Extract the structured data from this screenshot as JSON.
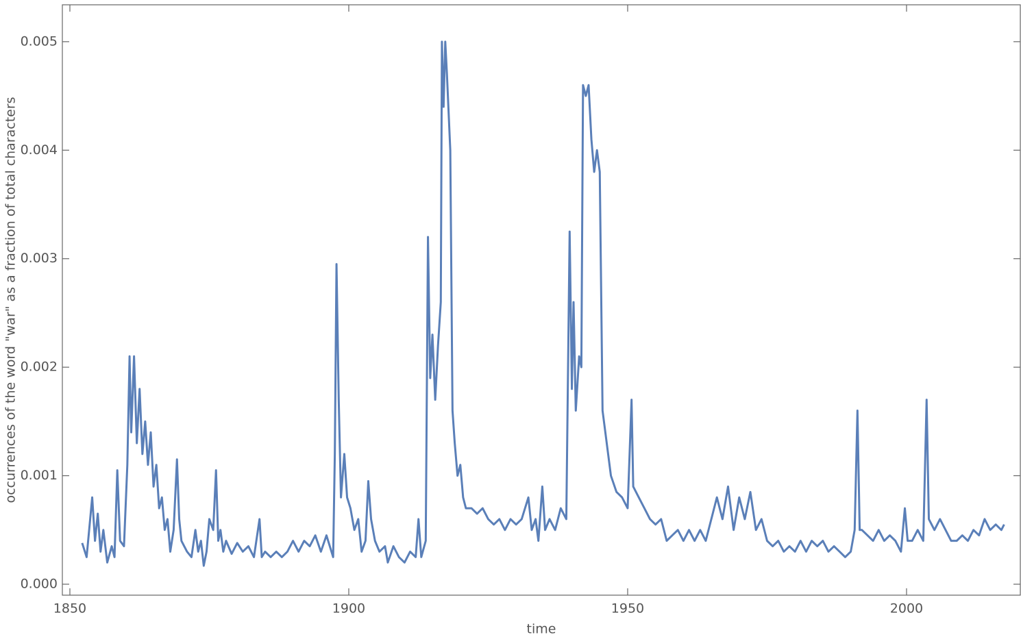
{
  "chart_data": {
    "type": "line",
    "x_label": "time",
    "y_label": "occurrences of the word \"war\" as a fraction of total characters",
    "xlim": [
      1848.65,
      2020.4
    ],
    "ylim": [
      -0.000101,
      0.00534
    ],
    "xticks": [
      1850,
      1900,
      1950,
      2000
    ],
    "yticks": [
      {
        "value": 0,
        "label": "0.000"
      },
      0.001,
      0.002,
      0.003,
      0.004,
      0.005
    ],
    "x": [
      1852.2,
      1853,
      1854,
      1854.5,
      1855,
      1855.5,
      1856,
      1856.7,
      1857.5,
      1858,
      1858.5,
      1859,
      1859.7,
      1860.3,
      1860.7,
      1861,
      1861.5,
      1862,
      1862.5,
      1863,
      1863.5,
      1864,
      1864.5,
      1865,
      1865.5,
      1866,
      1866.5,
      1867,
      1867.5,
      1868,
      1868.6,
      1869.2,
      1869.6,
      1870,
      1871,
      1871.8,
      1872.5,
      1873,
      1873.5,
      1874,
      1874.5,
      1875,
      1875.7,
      1876.2,
      1876.6,
      1877,
      1877.5,
      1878,
      1879,
      1880,
      1881,
      1882,
      1883,
      1884,
      1884.4,
      1885,
      1886,
      1887,
      1888,
      1889,
      1890,
      1891,
      1892,
      1893,
      1894,
      1895,
      1896,
      1897.2,
      1897.5,
      1897.8,
      1898.2,
      1898.6,
      1899.2,
      1899.7,
      1900.3,
      1901,
      1901.7,
      1902.3,
      1903,
      1903.5,
      1904,
      1904.7,
      1905.5,
      1906.5,
      1907,
      1908,
      1909,
      1910,
      1911,
      1912,
      1912.5,
      1913,
      1913.8,
      1914.2,
      1914.6,
      1915,
      1915.5,
      1916,
      1916.5,
      1916.7,
      1917,
      1917.3,
      1917.6,
      1918.2,
      1918.6,
      1919,
      1919.5,
      1920,
      1920.5,
      1921,
      1922,
      1923,
      1924,
      1925,
      1926,
      1927,
      1928,
      1929,
      1930,
      1931,
      1932.2,
      1932.8,
      1933.5,
      1934,
      1934.7,
      1935.2,
      1936,
      1937,
      1938,
      1939,
      1939.6,
      1940,
      1940.3,
      1940.7,
      1941.3,
      1941.7,
      1942,
      1942.5,
      1943,
      1943.5,
      1944,
      1944.5,
      1945,
      1945.5,
      1946,
      1946.5,
      1947,
      1948,
      1949,
      1950,
      1950.7,
      1951,
      1952,
      1953,
      1954,
      1955,
      1956,
      1957,
      1958,
      1959,
      1960,
      1961,
      1962,
      1963,
      1964,
      1965,
      1966,
      1967,
      1968,
      1969,
      1970,
      1971,
      1972,
      1973,
      1974,
      1975,
      1976,
      1977,
      1978,
      1979,
      1980,
      1981,
      1982,
      1983,
      1984,
      1985,
      1986,
      1987,
      1988,
      1989,
      1990,
      1990.7,
      1991.2,
      1991.6,
      1992,
      1993,
      1994,
      1995,
      1996,
      1997,
      1998,
      1999,
      1999.7,
      2000.2,
      2001,
      2002,
      2003,
      2003.6,
      2004,
      2005,
      2006,
      2007,
      2008,
      2009,
      2010,
      2011,
      2012,
      2013,
      2014,
      2015,
      2016,
      2017,
      2017.5
    ],
    "series": [
      {
        "color": "#5a7fb8",
        "values": [
          0.00038,
          0.00025,
          0.0008,
          0.0004,
          0.00065,
          0.0003,
          0.0005,
          0.0002,
          0.00035,
          0.00025,
          0.00105,
          0.0004,
          0.00035,
          0.0011,
          0.0021,
          0.0014,
          0.0021,
          0.0013,
          0.0018,
          0.0012,
          0.0015,
          0.0011,
          0.0014,
          0.0009,
          0.0011,
          0.0007,
          0.0008,
          0.0005,
          0.0006,
          0.0003,
          0.0005,
          0.00115,
          0.0006,
          0.0004,
          0.0003,
          0.00025,
          0.0005,
          0.0003,
          0.0004,
          0.00017,
          0.0003,
          0.0006,
          0.0005,
          0.00105,
          0.0004,
          0.0005,
          0.0003,
          0.0004,
          0.00028,
          0.00038,
          0.0003,
          0.00035,
          0.00025,
          0.0006,
          0.00025,
          0.0003,
          0.00025,
          0.0003,
          0.00025,
          0.0003,
          0.0004,
          0.0003,
          0.0004,
          0.00035,
          0.00045,
          0.0003,
          0.00045,
          0.00025,
          0.0012,
          0.00295,
          0.0017,
          0.0008,
          0.0012,
          0.0008,
          0.0007,
          0.0005,
          0.0006,
          0.0003,
          0.0004,
          0.00095,
          0.0006,
          0.0004,
          0.0003,
          0.00035,
          0.0002,
          0.00035,
          0.00025,
          0.0002,
          0.0003,
          0.00025,
          0.0006,
          0.00025,
          0.0004,
          0.0032,
          0.0019,
          0.0023,
          0.0017,
          0.0022,
          0.0026,
          0.005,
          0.0044,
          0.005,
          0.0047,
          0.004,
          0.0016,
          0.0013,
          0.001,
          0.0011,
          0.0008,
          0.0007,
          0.0007,
          0.00065,
          0.0007,
          0.0006,
          0.00055,
          0.0006,
          0.0005,
          0.0006,
          0.00055,
          0.0006,
          0.0008,
          0.0005,
          0.0006,
          0.0004,
          0.0009,
          0.0005,
          0.0006,
          0.0005,
          0.0007,
          0.0006,
          0.00325,
          0.0018,
          0.0026,
          0.0016,
          0.0021,
          0.002,
          0.0046,
          0.0045,
          0.0046,
          0.0041,
          0.0038,
          0.004,
          0.0038,
          0.0016,
          0.0014,
          0.0012,
          0.001,
          0.00085,
          0.0008,
          0.0007,
          0.0017,
          0.0009,
          0.0008,
          0.0007,
          0.0006,
          0.00055,
          0.0006,
          0.0004,
          0.00045,
          0.0005,
          0.0004,
          0.0005,
          0.0004,
          0.0005,
          0.0004,
          0.0006,
          0.0008,
          0.0006,
          0.0009,
          0.0005,
          0.0008,
          0.0006,
          0.00085,
          0.0005,
          0.0006,
          0.0004,
          0.00035,
          0.0004,
          0.0003,
          0.00035,
          0.0003,
          0.0004,
          0.0003,
          0.0004,
          0.00035,
          0.0004,
          0.0003,
          0.00035,
          0.0003,
          0.00025,
          0.0003,
          0.0005,
          0.0016,
          0.0005,
          0.0005,
          0.00045,
          0.0004,
          0.0005,
          0.0004,
          0.00045,
          0.0004,
          0.0003,
          0.0007,
          0.0004,
          0.0004,
          0.0005,
          0.0004,
          0.0017,
          0.0006,
          0.0005,
          0.0006,
          0.0005,
          0.0004,
          0.0004,
          0.00045,
          0.0004,
          0.0005,
          0.00045,
          0.0006,
          0.0005,
          0.00055,
          0.0005,
          0.00055
        ]
      }
    ]
  }
}
